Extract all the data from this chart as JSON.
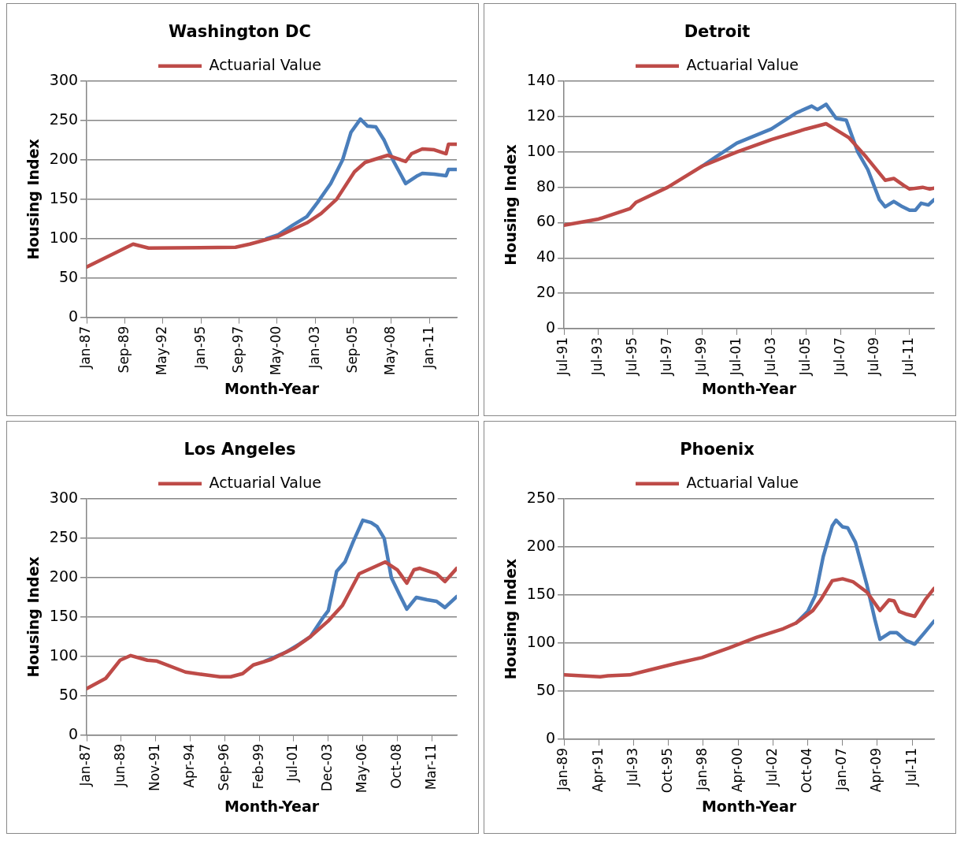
{
  "chart_data": [
    {
      "type": "line",
      "title": "Washington DC",
      "xlabel": "Month-Year",
      "ylabel": "Housing Index",
      "legend": "top",
      "grid": "y",
      "marker": "none",
      "xlim": [
        "1987-01",
        "2012-12"
      ],
      "xticks": [
        {
          "value": "1987-01",
          "label": "Jan-87"
        },
        {
          "value": "1989-09",
          "label": "Sep-89"
        },
        {
          "value": "1992-05",
          "label": "May-92"
        },
        {
          "value": "1995-01",
          "label": "Jan-95"
        },
        {
          "value": "1997-09",
          "label": "Sep-97"
        },
        {
          "value": "2000-05",
          "label": "May-00"
        },
        {
          "value": "2003-01",
          "label": "Jan-03"
        },
        {
          "value": "2005-09",
          "label": "Sep-05"
        },
        {
          "value": "2008-05",
          "label": "May-08"
        },
        {
          "value": "2011-01",
          "label": "Jan-11"
        }
      ],
      "ylim": [
        0,
        300
      ],
      "yticks": [
        0,
        50,
        100,
        150,
        200,
        250,
        300
      ],
      "series": [
        {
          "color": "#4a7ebb",
          "x": [
            "1999-08",
            "2000-06",
            "2001-06",
            "2002-06",
            "2003-03",
            "2004-02",
            "2004-12",
            "2005-07",
            "2006-03",
            "2006-09",
            "2007-04",
            "2007-11",
            "2008-07",
            "2009-05",
            "2010-03",
            "2010-07",
            "2011-05",
            "2012-03",
            "2012-05",
            "2012-12"
          ],
          "values": [
            100,
            105,
            117,
            128,
            146,
            170,
            200,
            235,
            252,
            243,
            242,
            225,
            198,
            170,
            180,
            183,
            182,
            180,
            188,
            188
          ]
        },
        {
          "name": "Actuarial Value",
          "color": "#be4b48",
          "x": [
            "1987-01",
            "1990-04",
            "1991-05",
            "1997-06",
            "1998-06",
            "2000-06",
            "2002-06",
            "2003-06",
            "2004-07",
            "2005-10",
            "2006-07",
            "2008-02",
            "2009-05",
            "2009-10",
            "2010-07",
            "2011-05",
            "2012-03",
            "2012-05",
            "2012-12"
          ],
          "values": [
            64,
            93,
            88,
            89,
            93,
            103,
            120,
            132,
            150,
            185,
            197,
            206,
            198,
            208,
            214,
            213,
            208,
            220,
            220
          ]
        }
      ]
    },
    {
      "type": "line",
      "title": "Detroit",
      "xlabel": "Month-Year",
      "ylabel": "Housing Index",
      "legend": "top",
      "grid": "y",
      "marker": "none",
      "xlim": [
        "1991-07",
        "2012-12"
      ],
      "xticks": [
        {
          "value": "1991-07",
          "label": "Jul-91"
        },
        {
          "value": "1993-07",
          "label": "Jul-93"
        },
        {
          "value": "1995-07",
          "label": "Jul-95"
        },
        {
          "value": "1997-07",
          "label": "Jul-97"
        },
        {
          "value": "1999-07",
          "label": "Jul-99"
        },
        {
          "value": "2001-07",
          "label": "Jul-01"
        },
        {
          "value": "2003-07",
          "label": "Jul-03"
        },
        {
          "value": "2005-07",
          "label": "Jul-05"
        },
        {
          "value": "2007-07",
          "label": "Jul-07"
        },
        {
          "value": "2009-07",
          "label": "Jul-09"
        },
        {
          "value": "2011-07",
          "label": "Jul-11"
        }
      ],
      "ylim": [
        0,
        140
      ],
      "yticks": [
        0,
        20,
        40,
        60,
        80,
        100,
        120,
        140
      ],
      "series": [
        {
          "color": "#4a7ebb",
          "x": [
            "1999-07",
            "2000-04",
            "2001-07",
            "2003-07",
            "2004-12",
            "2005-11",
            "2006-03",
            "2006-09",
            "2007-04",
            "2007-11",
            "2008-07",
            "2009-02",
            "2009-10",
            "2010-02",
            "2010-08",
            "2011-02",
            "2011-07",
            "2011-11",
            "2012-03",
            "2012-08",
            "2012-12"
          ],
          "values": [
            92,
            97,
            105,
            113,
            122,
            126,
            124,
            127,
            119,
            118,
            100,
            90,
            73,
            69,
            72,
            69,
            67,
            67,
            71,
            70,
            73
          ]
        },
        {
          "name": "Actuarial Value",
          "color": "#be4b48",
          "x": [
            "1991-07",
            "1993-07",
            "1995-05",
            "1995-09",
            "1997-07",
            "1999-07",
            "2001-07",
            "2003-07",
            "2005-07",
            "2006-09",
            "2007-07",
            "2008-01",
            "2009-01",
            "2010-02",
            "2010-08",
            "2011-03",
            "2011-07",
            "2012-04",
            "2012-09",
            "2012-12"
          ],
          "values": [
            58.5,
            62,
            68,
            71.5,
            80,
            92,
            100,
            107,
            113,
            116,
            111,
            108,
            97,
            84,
            85,
            81,
            79,
            80,
            79,
            79.5
          ]
        }
      ]
    },
    {
      "type": "line",
      "title": "Los Angeles",
      "xlabel": "Month-Year",
      "ylabel": "Housing Index",
      "legend": "top",
      "grid": "y",
      "marker": "none",
      "xlim": [
        "1987-01",
        "2012-12"
      ],
      "xticks": [
        {
          "value": "1987-01",
          "label": "Jan-87"
        },
        {
          "value": "1989-06",
          "label": "Jun-89"
        },
        {
          "value": "1991-11",
          "label": "Nov-91"
        },
        {
          "value": "1994-04",
          "label": "Apr-94"
        },
        {
          "value": "1996-09",
          "label": "Sep-96"
        },
        {
          "value": "1999-02",
          "label": "Feb-99"
        },
        {
          "value": "2001-07",
          "label": "Jul-01"
        },
        {
          "value": "2003-12",
          "label": "Dec-03"
        },
        {
          "value": "2006-05",
          "label": "May-06"
        },
        {
          "value": "2008-10",
          "label": "Oct-08"
        },
        {
          "value": "2011-03",
          "label": "Mar-11"
        }
      ],
      "ylim": [
        0,
        300
      ],
      "yticks": [
        0,
        50,
        100,
        150,
        200,
        250,
        300
      ],
      "series": [
        {
          "color": "#4a7ebb",
          "x": [
            "1999-07",
            "2000-12",
            "2001-12",
            "2002-09",
            "2003-07",
            "2003-12",
            "2004-07",
            "2005-02",
            "2005-09",
            "2006-05",
            "2006-12",
            "2007-05",
            "2007-11",
            "2008-05",
            "2008-12",
            "2009-06",
            "2010-02",
            "2010-11",
            "2011-07",
            "2012-02",
            "2012-12"
          ],
          "values": [
            94,
            105,
            116,
            125,
            148,
            158,
            208,
            220,
            246,
            273,
            270,
            265,
            250,
            200,
            178,
            160,
            175,
            172,
            170,
            162,
            176
          ]
        },
        {
          "name": "Actuarial Value",
          "color": "#be4b48",
          "x": [
            "1987-01",
            "1988-05",
            "1989-05",
            "1990-02",
            "1991-04",
            "1991-12",
            "1993-12",
            "1995-02",
            "1996-05",
            "1997-02",
            "1997-12",
            "1998-09",
            "1999-12",
            "2001-07",
            "2002-09",
            "2003-12",
            "2004-12",
            "2006-02",
            "2007-12",
            "2008-10",
            "2009-06",
            "2009-12",
            "2010-05",
            "2011-07",
            "2012-02",
            "2012-12"
          ],
          "values": [
            59,
            72,
            95,
            101,
            95,
            94,
            80,
            77,
            74,
            74,
            78,
            89,
            96,
            110,
            125,
            145,
            165,
            205,
            220,
            210,
            193,
            210,
            212,
            205,
            195,
            212
          ]
        }
      ]
    },
    {
      "type": "line",
      "title": "Phoenix",
      "xlabel": "Month-Year",
      "ylabel": "Housing Index",
      "legend": "top",
      "grid": "y",
      "marker": "none",
      "xlim": [
        "1989-01",
        "2012-12"
      ],
      "xticks": [
        {
          "value": "1989-01",
          "label": "Jan-89"
        },
        {
          "value": "1991-04",
          "label": "Apr-91"
        },
        {
          "value": "1993-07",
          "label": "Jul-93"
        },
        {
          "value": "1995-10",
          "label": "Oct-95"
        },
        {
          "value": "1998-01",
          "label": "Jan-98"
        },
        {
          "value": "2000-04",
          "label": "Apr-00"
        },
        {
          "value": "2002-07",
          "label": "Jul-02"
        },
        {
          "value": "2004-10",
          "label": "Oct-04"
        },
        {
          "value": "2007-01",
          "label": "Jan-07"
        },
        {
          "value": "2009-04",
          "label": "Apr-09"
        },
        {
          "value": "2011-07",
          "label": "Jul-11"
        }
      ],
      "ylim": [
        0,
        250
      ],
      "yticks": [
        0,
        50,
        100,
        150,
        200,
        250
      ],
      "series": [
        {
          "color": "#4a7ebb",
          "x": [
            "2004-01",
            "2004-10",
            "2005-04",
            "2005-10",
            "2006-05",
            "2006-08",
            "2007-01",
            "2007-05",
            "2007-11",
            "2008-08",
            "2009-02",
            "2009-06",
            "2010-02",
            "2010-07",
            "2011-02",
            "2011-09",
            "2012-04",
            "2012-12"
          ],
          "values": [
            121,
            133,
            150,
            190,
            222,
            228,
            221,
            220,
            205,
            160,
            125,
            104,
            111,
            111,
            103,
            99,
            110,
            123
          ]
        },
        {
          "name": "Actuarial Value",
          "color": "#be4b48",
          "x": [
            "1989-01",
            "1990-03",
            "1991-05",
            "1991-11",
            "1993-04",
            "1994-07",
            "1996-04",
            "1997-12",
            "1999-09",
            "2001-06",
            "2003-03",
            "2004-01",
            "2005-02",
            "2005-08",
            "2006-05",
            "2007-01",
            "2007-09",
            "2008-08",
            "2009-06",
            "2010-01",
            "2010-05",
            "2010-09",
            "2011-03",
            "2011-09",
            "2012-05",
            "2012-12"
          ],
          "values": [
            67,
            66,
            65,
            66,
            67,
            72,
            79,
            85,
            95,
            106,
            115,
            121,
            134,
            145,
            165,
            167,
            164,
            153,
            134,
            145,
            144,
            133,
            130,
            128,
            145,
            157
          ]
        }
      ]
    }
  ]
}
